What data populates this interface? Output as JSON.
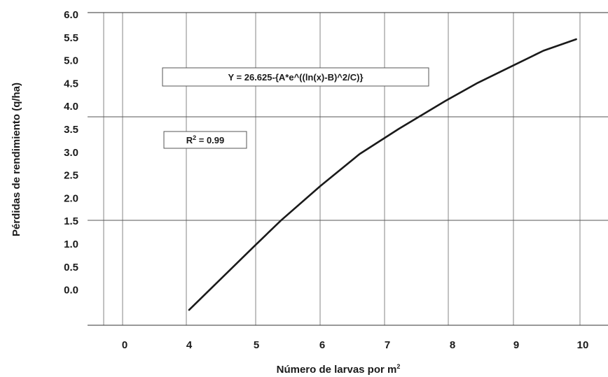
{
  "chart_data": {
    "type": "line",
    "xlabel": "Número de larvas por m",
    "xlabel_sup": "2",
    "ylabel": "Pérdidas de rendimiento (q/ha)",
    "xticks": [
      "0",
      "4",
      "5",
      "6",
      "7",
      "8",
      "9",
      "10"
    ],
    "yticks": [
      "6.0",
      "5.5",
      "5.0",
      "4.5",
      "4.0",
      "3.5",
      "3.0",
      "2.5",
      "2.0",
      "1.5",
      "1.0",
      "0.5",
      "0.0"
    ],
    "series": [
      {
        "x": [
          4,
          5,
          5.4,
          6,
          6.6,
          7.2,
          7.9,
          8.4,
          8.9,
          9.4,
          9.9
        ],
        "y": [
          -0.45,
          0.95,
          1.5,
          2.25,
          2.95,
          3.5,
          4.1,
          4.5,
          4.85,
          5.2,
          5.45
        ]
      }
    ],
    "annotations": {
      "equation": "Y = 26.625-{A*e^((ln(x)-B)^2/C)}",
      "r2_prefix": "R",
      "r2_sup": "2",
      "r2_suffix": " = 0.99"
    },
    "colors": {
      "line": "#1a1a1a",
      "grid": "#9a9a9a",
      "axis": "#333333"
    }
  }
}
